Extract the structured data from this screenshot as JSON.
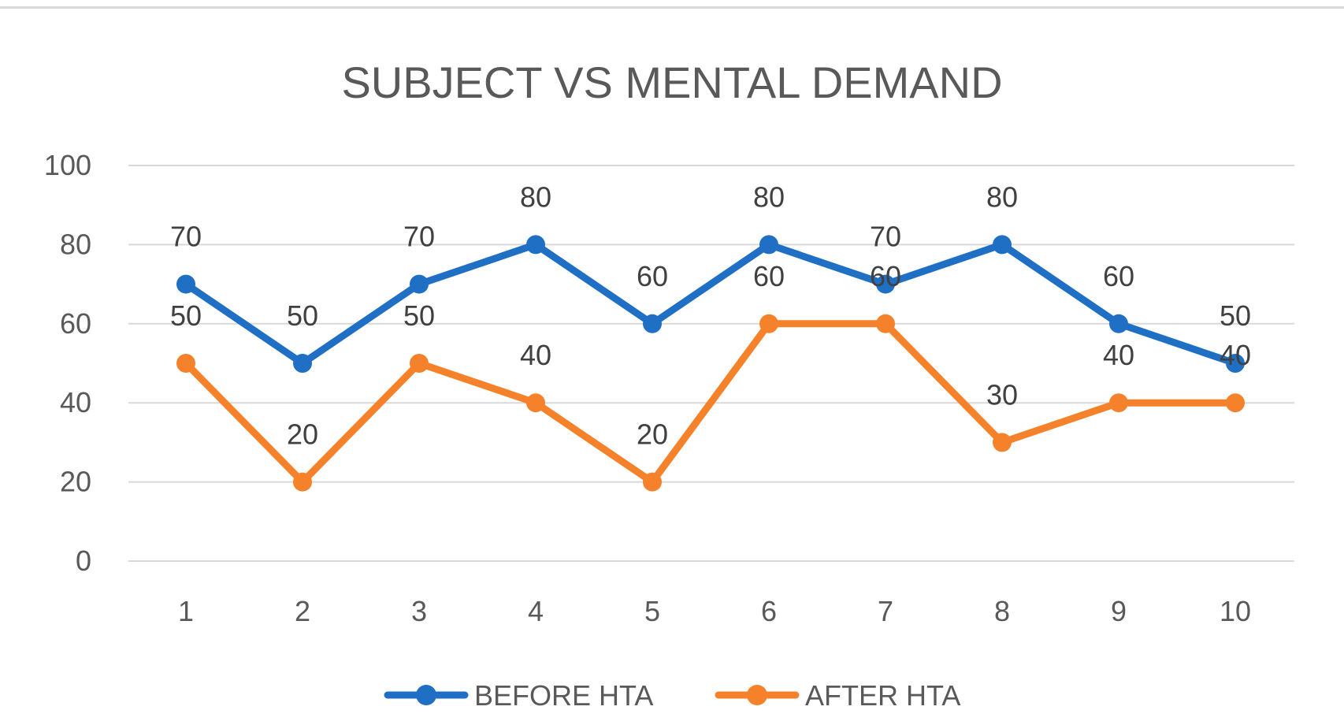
{
  "chart_data": {
    "type": "line",
    "title": "SUBJECT VS MENTAL DEMAND",
    "xlabel": "",
    "ylabel": "",
    "categories": [
      "1",
      "2",
      "3",
      "4",
      "5",
      "6",
      "7",
      "8",
      "9",
      "10"
    ],
    "ylim": [
      0,
      100
    ],
    "yticks": [
      0,
      20,
      40,
      60,
      80,
      100
    ],
    "grid": true,
    "legend_position": "bottom",
    "series": [
      {
        "name": "BEFORE HTA",
        "color": "#1f6fc5",
        "values": [
          70,
          50,
          70,
          80,
          60,
          80,
          70,
          80,
          60,
          50
        ]
      },
      {
        "name": "AFTER HTA",
        "color": "#f5822a",
        "values": [
          50,
          20,
          50,
          40,
          20,
          60,
          60,
          30,
          40,
          40
        ]
      }
    ]
  }
}
